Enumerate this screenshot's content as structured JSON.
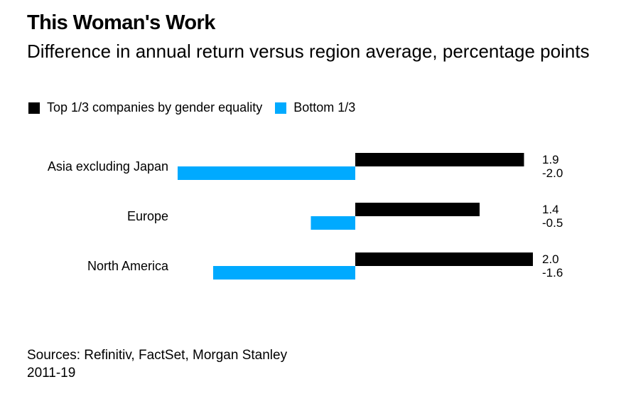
{
  "title": "This Woman's Work",
  "subtitle": "Difference in annual return versus region average, percentage points",
  "legend": [
    {
      "label": "Top 1/3 companies by gender equality",
      "color": "#000000"
    },
    {
      "label": "Bottom 1/3",
      "color": "#00aaff"
    }
  ],
  "sources": {
    "line1": "Sources: Refinitiv, FactSet, Morgan Stanley",
    "line2": "2011-19"
  },
  "chart_data": {
    "type": "bar",
    "orientation": "horizontal",
    "categories": [
      "Asia excluding Japan",
      "Europe",
      "North America"
    ],
    "series": [
      {
        "name": "Top 1/3 companies by gender equality",
        "color": "#000000",
        "values": [
          1.9,
          1.4,
          2.0
        ],
        "labels": [
          "1.9",
          "1.4",
          "2.0"
        ]
      },
      {
        "name": "Bottom 1/3",
        "color": "#00aaff",
        "values": [
          -2.0,
          -0.5,
          -1.6
        ],
        "labels": [
          "-2.0",
          "-0.5",
          "-1.6"
        ]
      }
    ],
    "xlim": [
      -2.0,
      2.0
    ],
    "grid": false,
    "legend_position": "top-left"
  }
}
